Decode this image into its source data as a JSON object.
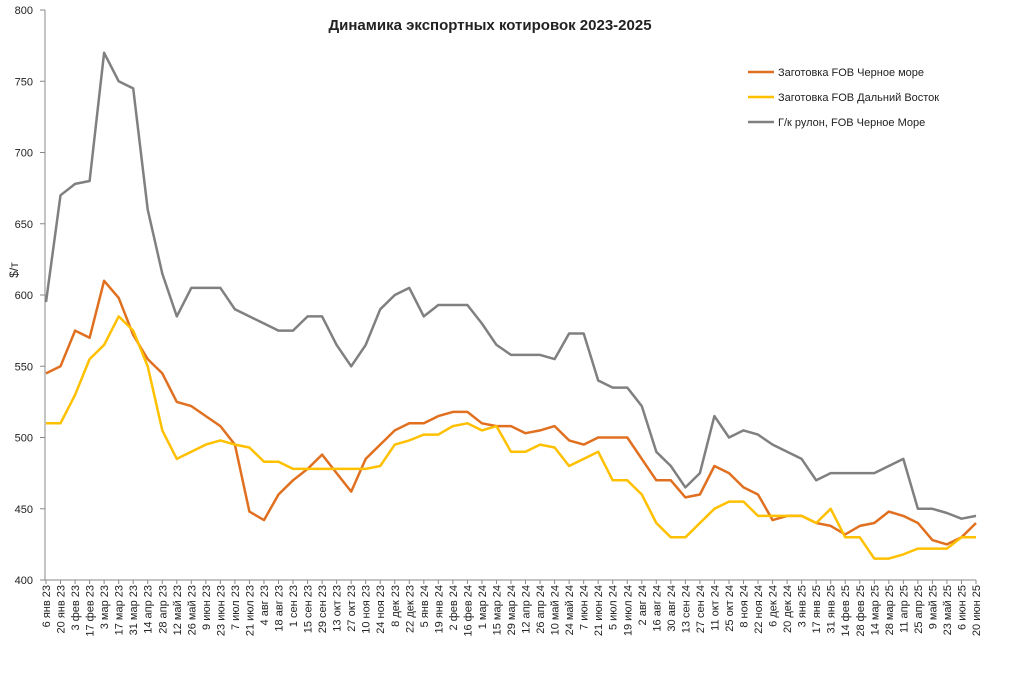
{
  "chart_data": {
    "type": "line",
    "title": "Динамика экспортных котировок 2023-2025",
    "y_label": "$/т",
    "categories": [
      "6 янв 23",
      "20 янв 23",
      "3 фев 23",
      "17 фев 23",
      "3 мар 23",
      "17 мар 23",
      "31 мар 23",
      "14 апр 23",
      "28 апр 23",
      "12 май 23",
      "26 май 23",
      "9 июн 23",
      "23 июн 23",
      "7 июл 23",
      "21 июл 23",
      "4 авг 23",
      "18 авг 23",
      "1 сен 23",
      "15 сен 23",
      "29 сен 23",
      "13 окт 23",
      "27 окт 23",
      "10 ноя 23",
      "24 ноя 23",
      "8 дек 23",
      "22 дек 23",
      "5 янв 24",
      "19 янв 24",
      "2 фев 24",
      "16 фев 24",
      "1 мар 24",
      "15 мар 24",
      "29 мар 24",
      "12 апр 24",
      "26 апр 24",
      "10 май 24",
      "24 май 24",
      "7 июн 24",
      "21 июн 24",
      "5 июл 24",
      "19 июл 24",
      "2 авг 24",
      "16 авг 24",
      "30 авг 24",
      "13 сен 24",
      "27 сен 24",
      "11 окт 24",
      "25 окт 24",
      "8 ноя 24",
      "22 ноя 24",
      "6 дек 24",
      "20 дек 24",
      "3 янв 25",
      "17 янв 25",
      "31 янв 25",
      "14 фев 25",
      "28 фев 25",
      "14 мар 25",
      "28 мар 25",
      "11 апр 25",
      "25 апр 25",
      "9 май 25",
      "23 май 25",
      "6 июн 25",
      "20 июн 25"
    ],
    "series": [
      {
        "name": "Заготовка FOB Черное море",
        "color": "#e07020",
        "values": [
          545,
          550,
          575,
          570,
          610,
          598,
          572,
          555,
          545,
          525,
          522,
          515,
          508,
          495,
          448,
          442,
          460,
          470,
          478,
          488,
          475,
          462,
          485,
          495,
          505,
          510,
          510,
          515,
          518,
          518,
          510,
          508,
          508,
          503,
          505,
          508,
          498,
          495,
          500,
          500,
          500,
          485,
          470,
          470,
          458,
          460,
          480,
          475,
          465,
          460,
          442,
          445,
          445,
          440,
          438,
          432,
          438,
          440,
          448,
          445,
          440,
          428,
          425,
          430,
          440
        ]
      },
      {
        "name": "Заготовка FOB Дальний Восток",
        "color": "#ffc000",
        "values": [
          510,
          510,
          530,
          555,
          565,
          585,
          575,
          550,
          505,
          485,
          490,
          495,
          498,
          495,
          493,
          483,
          483,
          478,
          478,
          478,
          478,
          478,
          478,
          480,
          495,
          498,
          502,
          502,
          508,
          510,
          505,
          508,
          490,
          490,
          495,
          493,
          480,
          485,
          490,
          470,
          470,
          460,
          440,
          430,
          430,
          440,
          450,
          455,
          455,
          445,
          445,
          445,
          445,
          440,
          450,
          430,
          430,
          415,
          415,
          418,
          422,
          422,
          422,
          430,
          430
        ]
      },
      {
        "name": "Г/к рулон, FOB Черное Море",
        "color": "#808080",
        "values": [
          595,
          670,
          678,
          680,
          770,
          750,
          745,
          660,
          615,
          585,
          605,
          605,
          605,
          590,
          585,
          580,
          575,
          575,
          585,
          585,
          565,
          550,
          565,
          590,
          600,
          605,
          585,
          593,
          593,
          593,
          580,
          565,
          558,
          558,
          558,
          555,
          573,
          573,
          540,
          535,
          535,
          522,
          490,
          480,
          465,
          475,
          515,
          500,
          505,
          502,
          495,
          490,
          485,
          470,
          475,
          475,
          475,
          475,
          480,
          485,
          450,
          450,
          447,
          443,
          445
        ]
      }
    ],
    "ylim": [
      400,
      800
    ],
    "yticks": [
      400,
      450,
      500,
      550,
      600,
      650,
      700,
      750,
      800
    ],
    "grid": false,
    "legend": "top-right"
  }
}
